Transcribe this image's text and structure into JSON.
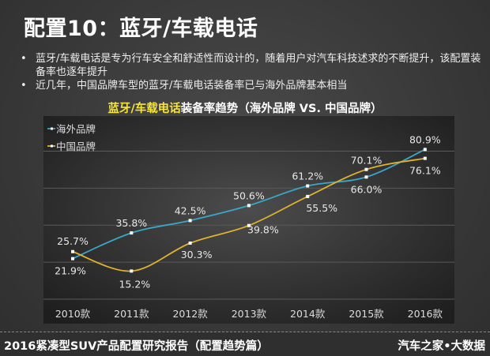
{
  "title": "配置10：蓝牙/车载电话",
  "bullets": [
    "蓝牙/车载电话是专为行车安全和舒适性而设计的，随着用户对汽车科技述求的不断提升，该配置装备率也逐年提升",
    "近几年，中国品牌车型的蓝牙/车载电话装备率已与海外品牌基本相当"
  ],
  "bullet_char": "•",
  "chart_title": {
    "highlight": "蓝牙/车载电话",
    "rest": "装备率趋势（海外品牌 VS. 中国品牌）",
    "highlight_color": "#f5e43c"
  },
  "chart_data": {
    "type": "line",
    "title": "蓝牙/车载电话装备率趋势（海外品牌 VS. 中国品牌）",
    "categories": [
      "2010款",
      "2011款",
      "2012款",
      "2013款",
      "2014款",
      "2015款",
      "2016款"
    ],
    "series": [
      {
        "name": "海外品牌",
        "color": "#3aa6c8",
        "values": [
          21.9,
          35.8,
          42.5,
          50.6,
          61.2,
          66.0,
          80.9
        ],
        "labels": [
          "21.9%",
          "35.8%",
          "42.5%",
          "50.6%",
          "61.2%",
          "66.0%",
          "80.9%"
        ]
      },
      {
        "name": "中国品牌",
        "color": "#e0b22e",
        "values": [
          25.7,
          15.2,
          30.3,
          39.8,
          55.5,
          70.1,
          76.1
        ],
        "labels": [
          "25.7%",
          "15.2%",
          "30.3%",
          "39.8%",
          "55.5%",
          "70.1%",
          "76.1%"
        ]
      }
    ],
    "ylim": [
      0,
      100
    ],
    "unit": "%",
    "grid": true,
    "smooth": true,
    "legend": "top-left"
  },
  "footer": {
    "left": "2016紧凑型SUV产品配置研究报告（配置趋势篇）",
    "right": "汽车之家•大数据"
  }
}
